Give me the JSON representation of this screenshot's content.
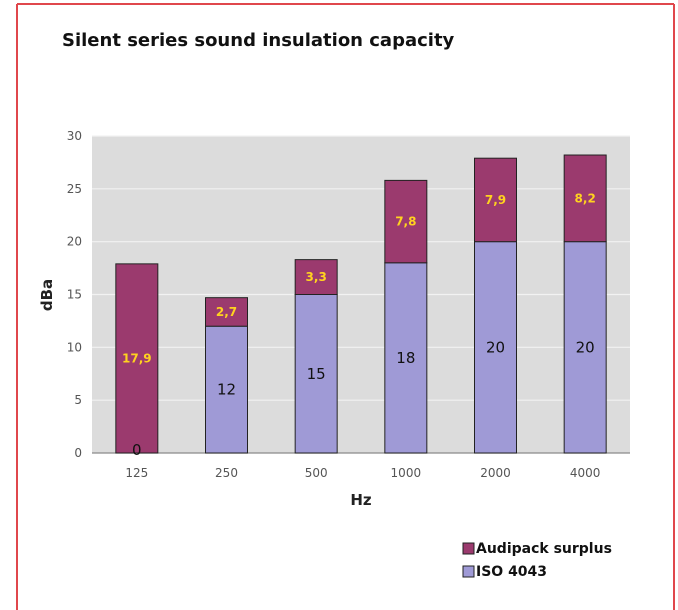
{
  "colors": {
    "frame": "#e0474c",
    "plot_bg": "#dcdcdc",
    "grid": "#f2f2f2",
    "surplus": "#9b3a6e",
    "iso": "#9f9ad6",
    "bar_stroke": "#222222",
    "label_yellow": "#ffd21f"
  },
  "chart_data": {
    "type": "bar",
    "stacked": true,
    "title": "Silent series sound insulation capacity",
    "xlabel": "Hz",
    "ylabel": "dBa",
    "ylim": [
      0,
      30
    ],
    "yticks": [
      0,
      5,
      10,
      15,
      20,
      25,
      30
    ],
    "categories": [
      "125",
      "250",
      "500",
      "1000",
      "2000",
      "4000"
    ],
    "series": [
      {
        "name": "ISO 4043",
        "values": [
          0,
          12,
          15,
          18,
          20,
          20
        ],
        "labels": [
          "0",
          "12",
          "15",
          "18",
          "20",
          "20"
        ]
      },
      {
        "name": "Audipack surplus",
        "values": [
          17.9,
          2.7,
          3.3,
          7.8,
          7.9,
          8.2
        ],
        "labels": [
          "17,9",
          "2,7",
          "3,3",
          "7,8",
          "7,9",
          "8,2"
        ]
      }
    ],
    "legend_position": "bottom-right",
    "grid": true
  }
}
